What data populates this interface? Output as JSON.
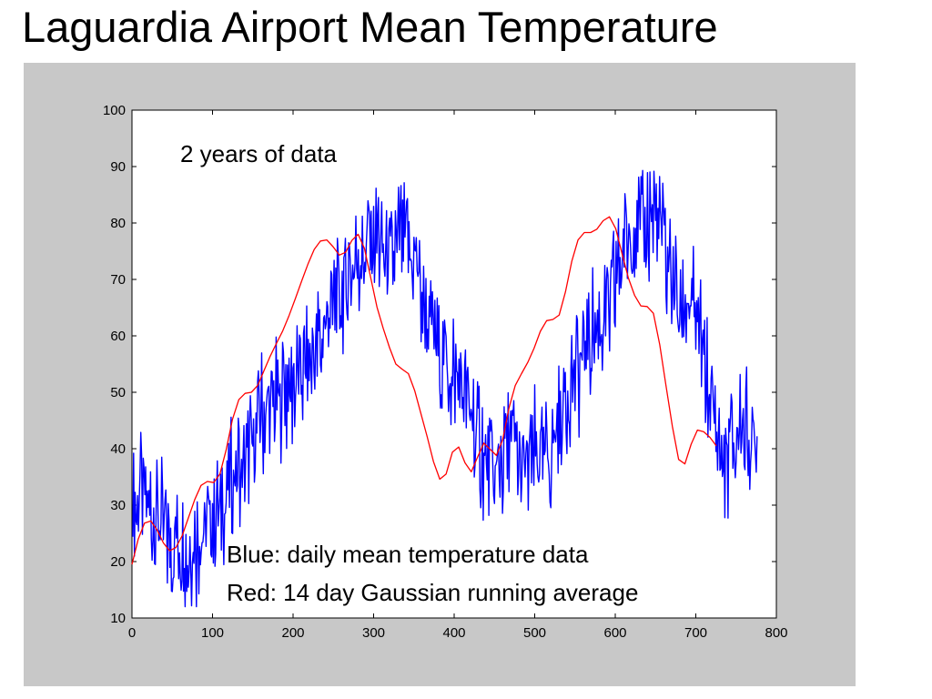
{
  "slide": {
    "title": "Laguardia Airport Mean Temperature"
  },
  "colors": {
    "figure_background": "#c8c8c8",
    "axes_background": "#ffffff",
    "daily_series": "#0000ff",
    "average_series": "#ff0000"
  },
  "chart_data": {
    "type": "line",
    "title": "",
    "xlabel": "",
    "ylabel": "",
    "xlim": [
      0,
      800
    ],
    "ylim": [
      10,
      100
    ],
    "x_ticks": [
      0,
      100,
      200,
      300,
      400,
      500,
      600,
      700,
      800
    ],
    "y_ticks": [
      10,
      20,
      30,
      40,
      50,
      60,
      70,
      80,
      90,
      100
    ],
    "grid": false,
    "annotations": {
      "top": "2 years of data",
      "legend_line_1": "Blue: daily mean temperature data",
      "legend_line_2": "Red: 14 day Gaussian running average"
    },
    "series": [
      {
        "color": "blue",
        "values": [
          31.2,
          31.4,
          31.3,
          31.2,
          31.1,
          31.0,
          30.7,
          30.4,
          30.1,
          29.6,
          29.1,
          28.6,
          28.0,
          27.4,
          26.8,
          26.2,
          25.6,
          25.0,
          24.5,
          24.0,
          23.6,
          23.2,
          22.9,
          22.6,
          22.4,
          22.3,
          22.3,
          22.3,
          22.4,
          22.6,
          22.8,
          23.1,
          23.4,
          23.8,
          24.2,
          24.7,
          25.2,
          25.8,
          26.4,
          27.1,
          27.8,
          28.5,
          29.3,
          30.1,
          30.9,
          31.7,
          32.5,
          33.3,
          34.0,
          34.6,
          35.1,
          35.4,
          35.7,
          35.9,
          36.2,
          36.6,
          37.2,
          38.0,
          39.0,
          40.1,
          41.3,
          42.5,
          43.7,
          44.8,
          45.7,
          46.5,
          47.1,
          47.6,
          48.0,
          48.3,
          48.5,
          48.7,
          48.9,
          49.0,
          49.2,
          49.4,
          49.6,
          49.9,
          50.3,
          50.7,
          51.2,
          51.8,
          52.4,
          53.1,
          53.8,
          54.5,
          55.2,
          55.9,
          56.5,
          57.1,
          57.7,
          58.3,
          58.9,
          59.6,
          60.3,
          61.1,
          61.9,
          62.8,
          63.7,
          64.6,
          65.4,
          66.2,
          67.0,
          67.8,
          68.6,
          69.3,
          70.1,
          70.9,
          71.7,
          72.5,
          73.3,
          74.0,
          74.7,
          75.3,
          75.8,
          76.3,
          76.6,
          76.9,
          77.1,
          77.2,
          77.2,
          77.1,
          76.9,
          76.6,
          76.2,
          75.8,
          75.4,
          75.1,
          75.0,
          75.1,
          75.4,
          75.9,
          76.5,
          77.0,
          77.4,
          77.6,
          77.5,
          77.1,
          76.3,
          75.1,
          73.6,
          71.8,
          69.9,
          68.0,
          66.3,
          64.8,
          63.5,
          62.4,
          61.4,
          60.5,
          59.5,
          58.5,
          57.5,
          56.5,
          55.6,
          54.9,
          54.4,
          54.1,
          53.9,
          53.7,
          53.4,
          52.9,
          52.2,
          51.3,
          50.2,
          49.1,
          47.9,
          46.7,
          45.6,
          44.5,
          43.5,
          42.4,
          41.3,
          40.1,
          38.9,
          37.7,
          36.5,
          35.5,
          34.8,
          34.4,
          34.5,
          35.1,
          36.1,
          37.3,
          38.6,
          39.7,
          40.4,
          40.6,
          40.4,
          39.9,
          39.1,
          38.2,
          37.4,
          36.8,
          36.4,
          36.5,
          37.0,
          37.8,
          38.8,
          39.8,
          40.6,
          41.0,
          40.9,
          40.4,
          39.8,
          39.2,
          38.8,
          38.8,
          39.3,
          40.3,
          41.7,
          43.3,
          45.0,
          46.6,
          48.1,
          49.4,
          50.5,
          51.4,
          52.2,
          52.9,
          53.6,
          54.3,
          55.0,
          55.8,
          56.5,
          57.4,
          58.3,
          59.3,
          60.3,
          61.2,
          62.0,
          62.5,
          62.8,
          62.9,
          63.0,
          63.2,
          63.8,
          64.8,
          66.2,
          67.9,
          69.8,
          71.6,
          73.3,
          74.8,
          76.1,
          77.1,
          77.8,
          78.2,
          78.3,
          78.3,
          78.3,
          78.4,
          78.6,
          78.9,
          79.4,
          79.9,
          80.3,
          80.7,
          81.0,
          81.1,
          80.8,
          80.1,
          79.0,
          77.6,
          76.0,
          74.3,
          72.6,
          71.0,
          69.6,
          68.4,
          67.4,
          66.5,
          65.9,
          65.4,
          65.1,
          65.1,
          65.2,
          65.2,
          64.9,
          64.2,
          62.9,
          61.2,
          59.2,
          57.0,
          54.8,
          52.6,
          50.4,
          48.2,
          46.1,
          44.0,
          42.0,
          40.1,
          38.5,
          37.4,
          36.9,
          37.1,
          37.9,
          39.0,
          40.3,
          41.5,
          42.5,
          43.2,
          43.5,
          43.5,
          43.2,
          42.8,
          42.3,
          41.8,
          41.3,
          40.7,
          40.0
        ],
        "x_step": 2.5
      },
      {
        "color": "red",
        "values": [
          19.5,
          24.0,
          26.8,
          27.2,
          25.6,
          23.3,
          21.9,
          22.5,
          24.6,
          27.8,
          31.0,
          33.5,
          34.2,
          34.0,
          35.5,
          39.8,
          45.2,
          48.7,
          49.8,
          50.0,
          51.2,
          53.8,
          56.4,
          58.7,
          60.9,
          63.6,
          66.6,
          69.7,
          72.7,
          75.3,
          76.8,
          77.0,
          75.8,
          74.3,
          74.8,
          76.9,
          78.0,
          75.5,
          70.3,
          65.1,
          61.3,
          57.9,
          55.0,
          54.1,
          53.3,
          50.3,
          46.2,
          42.1,
          37.7,
          34.6,
          35.5,
          39.4,
          40.3,
          37.5,
          35.9,
          38.5,
          41.0,
          39.9,
          38.8,
          41.6,
          47.2,
          51.2,
          53.3,
          55.3,
          57.8,
          60.8,
          62.7,
          62.9,
          63.7,
          67.8,
          73.2,
          77.0,
          78.3,
          78.3,
          78.9,
          80.4,
          81.1,
          79.0,
          74.6,
          70.3,
          67.2,
          65.3,
          65.2,
          64.0,
          58.4,
          51.1,
          44.0,
          38.1,
          37.3,
          40.8,
          43.3,
          43.0,
          42.0,
          40.5
        ],
        "x_step": 7.8
      }
    ]
  }
}
